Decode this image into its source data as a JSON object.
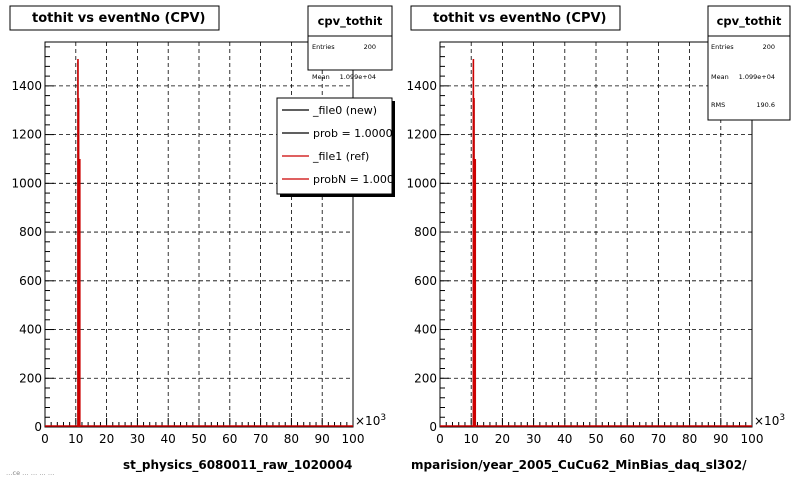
{
  "colors": {
    "new": "#000000",
    "ref": "#cc0000",
    "grid": "#000000"
  },
  "chart_data": [
    {
      "type": "histogram",
      "title": "tothit vs eventNo (CPV)",
      "xlabel": "st_physics_6080011_raw_1020004",
      "x_exponent": "×10",
      "x_exponent_power": "3",
      "xlim": [
        0,
        100
      ],
      "ylim": [
        0,
        1580
      ],
      "x_ticks": [
        "0",
        "10",
        "20",
        "30",
        "40",
        "50",
        "60",
        "70",
        "80",
        "90",
        "100"
      ],
      "y_ticks": [
        "0",
        "200",
        "400",
        "600",
        "800",
        "1000",
        "1200",
        "1400"
      ],
      "grid": true,
      "stats": {
        "name": "cpv_tothit",
        "entries_label": "Entries",
        "entries": "200",
        "mean_label": "Mean",
        "mean": "1.099e+04"
      },
      "legend": [
        "_file0 (new)",
        "prob = 1.000000",
        "_file1 (ref)",
        "probN = 1.000000"
      ],
      "series": [
        {
          "name": "_file0 (new)",
          "x": [
            10.7,
            10.9,
            11.1,
            11.3
          ],
          "values": [
            1500,
            1340,
            420,
            1090
          ]
        },
        {
          "name": "_file1 (ref)",
          "x": [
            10.7,
            10.9,
            11.1,
            11.3
          ],
          "values": [
            1510,
            1350,
            430,
            1100
          ]
        }
      ]
    },
    {
      "type": "histogram",
      "title": "tothit vs eventNo (CPV)",
      "xlabel": "mparision/year_2005_CuCu62_MinBias_daq_sl302/",
      "x_exponent": "×10",
      "x_exponent_power": "3",
      "xlim": [
        0,
        100
      ],
      "ylim": [
        0,
        1580
      ],
      "x_ticks": [
        "0",
        "10",
        "20",
        "30",
        "40",
        "50",
        "60",
        "70",
        "80",
        "90",
        "100"
      ],
      "y_ticks": [
        "0",
        "200",
        "400",
        "600",
        "800",
        "1000",
        "1200",
        "1400"
      ],
      "grid": true,
      "stats": {
        "name": "cpv_tothit",
        "entries_label": "Entries",
        "entries": "200",
        "mean_label": "Mean",
        "mean": "1.099e+04",
        "rms_label": "RMS",
        "rms": "190.6"
      },
      "series": [
        {
          "name": "_file0 (new)",
          "x": [
            10.7,
            10.9,
            11.1,
            11.3
          ],
          "values": [
            1500,
            1340,
            420,
            1090
          ]
        },
        {
          "name": "_file1 (ref)",
          "x": [
            10.7,
            10.9,
            11.1,
            11.3
          ],
          "values": [
            1510,
            1350,
            430,
            1100
          ]
        }
      ]
    }
  ],
  "footer": {
    "text": "…ce … … … …"
  }
}
